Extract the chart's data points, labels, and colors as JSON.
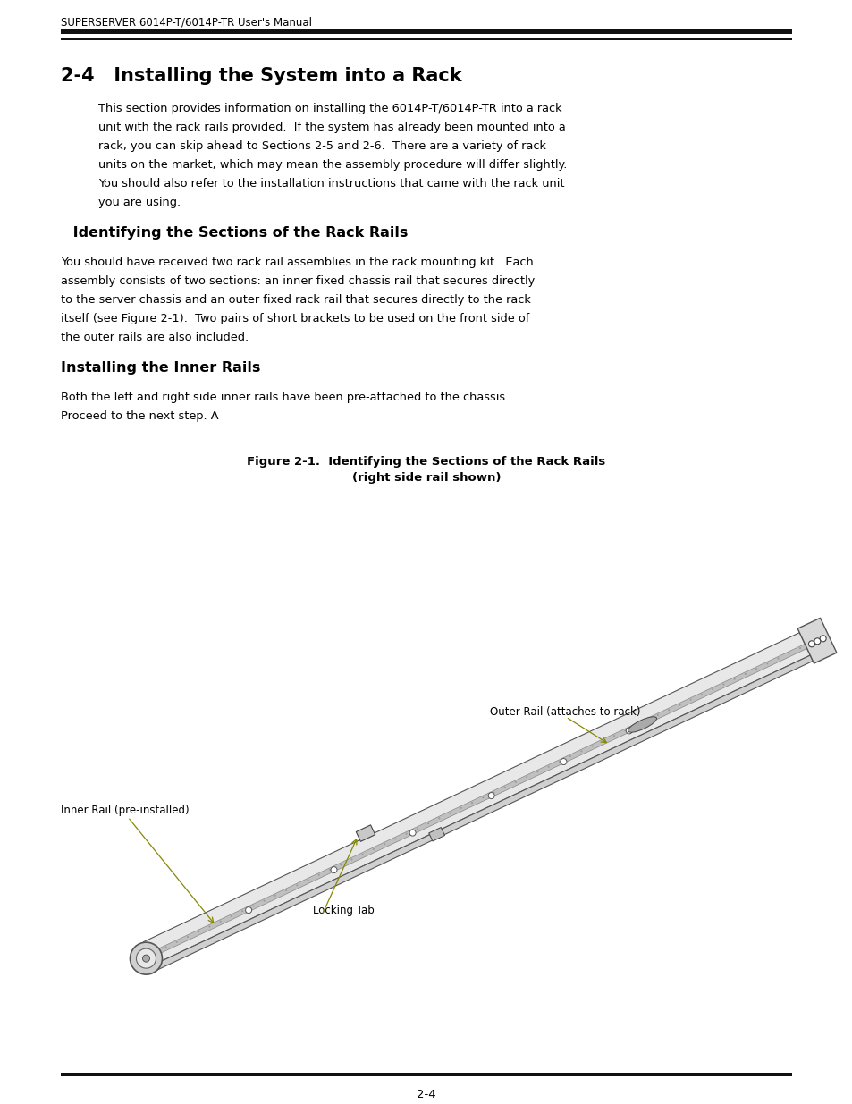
{
  "header_text": "SUPERSERVER 6014P-T/6014P-TR User's Manual",
  "section_title": "2-4   Installing the System into a Rack",
  "section1_heading": " Identifying the Sections of the Rack Rails",
  "section1_body_lines": [
    "You should have received two rack rail assemblies in the rack mounting kit.  Each",
    "assembly consists of two sections: an inner fixed chassis rail that secures directly",
    "to the server chassis and an outer fixed rack rail that secures directly to the rack",
    "itself (see Figure 2-1).  Two pairs of short brackets to be used on the front side of",
    "the outer rails are also included."
  ],
  "section2_heading": "Installing the Inner Rails",
  "section2_body_lines": [
    "Both the left and right side inner rails have been pre-attached to the chassis.",
    "Proceed to the next step. A"
  ],
  "intro_body_lines": [
    "This section provides information on installing the 6014P-T/6014P-TR into a rack",
    "unit with the rack rails provided.  If the system has already been mounted into a",
    "rack, you can skip ahead to Sections 2-5 and 2-6.  There are a variety of rack",
    "units on the market, which may mean the assembly procedure will differ slightly.",
    "You should also refer to the installation instructions that came with the rack unit",
    "you are using."
  ],
  "figure_caption_line1": "Figure 2-1.  Identifying the Sections of the Rack Rails",
  "figure_caption_line2": "(right side rail shown)",
  "label_outer_rail": "Outer Rail (attaches to rack)",
  "label_inner_rail": "Inner Rail (pre-installed)",
  "label_locking_tab": "Locking Tab",
  "page_number": "2-4",
  "bg_color": "#ffffff",
  "text_color": "#000000"
}
